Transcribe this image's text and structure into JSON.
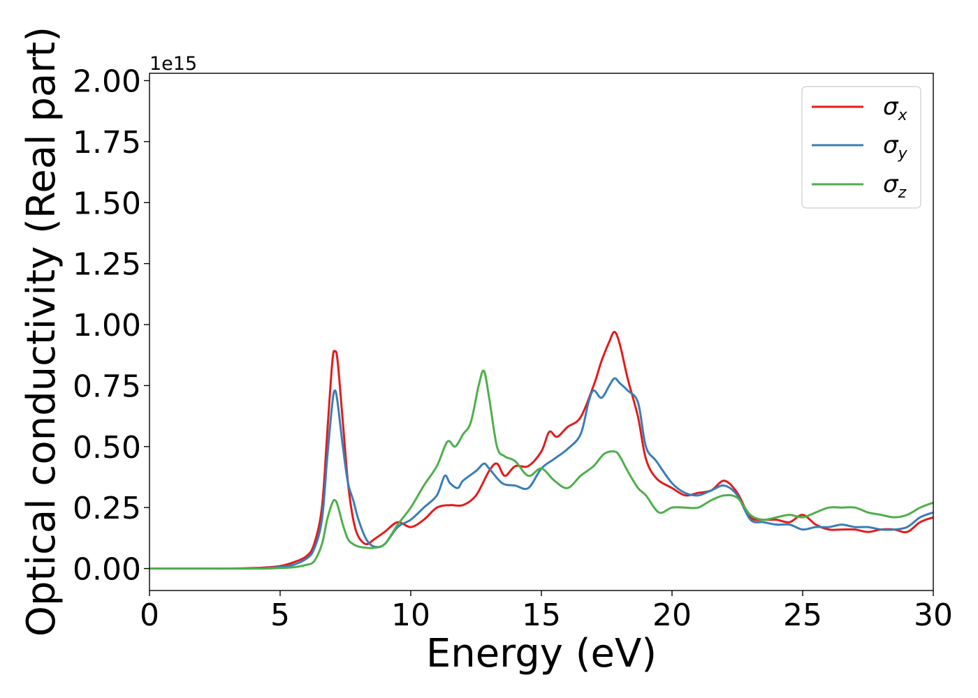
{
  "chart_data": {
    "type": "line",
    "title": "",
    "xlabel": "Energy (eV)",
    "ylabel": "Optical conductivity (Real part)",
    "y_offset_label": "1e15",
    "xlim": [
      0,
      30
    ],
    "ylim": [
      -0.09,
      2.03
    ],
    "x_ticks": [
      0,
      5,
      10,
      15,
      20,
      25,
      30
    ],
    "x_tick_labels": [
      "0",
      "5",
      "10",
      "15",
      "20",
      "25",
      "30"
    ],
    "y_ticks": [
      0.0,
      0.25,
      0.5,
      0.75,
      1.0,
      1.25,
      1.5,
      1.75,
      2.0
    ],
    "y_tick_labels": [
      "0.00",
      "0.25",
      "0.50",
      "0.75",
      "1.00",
      "1.25",
      "1.50",
      "1.75",
      "2.00"
    ],
    "grid": false,
    "legend_position": "top-right",
    "series": [
      {
        "name": "σx",
        "symbol": "σ",
        "subscript": "x",
        "color": "#e41a1c",
        "x": [
          0,
          1,
          2,
          3,
          4,
          4.5,
          5,
          5.5,
          6,
          6.3,
          6.6,
          6.8,
          7.0,
          7.1,
          7.2,
          7.4,
          7.6,
          7.8,
          8.0,
          8.3,
          8.6,
          9.0,
          9.5,
          10.0,
          10.5,
          11.0,
          11.5,
          12.0,
          12.5,
          13.0,
          13.3,
          13.6,
          14.0,
          14.5,
          15.0,
          15.3,
          15.6,
          16.0,
          16.5,
          17.0,
          17.3,
          17.6,
          17.8,
          18.0,
          18.3,
          18.7,
          19.0,
          19.4,
          20.0,
          20.5,
          21.0,
          21.5,
          22.0,
          22.5,
          23.0,
          23.5,
          24.0,
          24.5,
          25.0,
          25.5,
          26.0,
          26.5,
          27.0,
          27.5,
          28.0,
          28.5,
          29.0,
          29.5,
          30.0
        ],
        "y": [
          0,
          0,
          0,
          0,
          0.002,
          0.005,
          0.01,
          0.025,
          0.05,
          0.1,
          0.25,
          0.55,
          0.85,
          0.89,
          0.85,
          0.6,
          0.35,
          0.2,
          0.13,
          0.1,
          0.12,
          0.15,
          0.19,
          0.17,
          0.2,
          0.25,
          0.26,
          0.26,
          0.3,
          0.4,
          0.43,
          0.38,
          0.42,
          0.42,
          0.48,
          0.56,
          0.54,
          0.58,
          0.62,
          0.75,
          0.85,
          0.93,
          0.97,
          0.92,
          0.78,
          0.62,
          0.45,
          0.37,
          0.33,
          0.3,
          0.31,
          0.32,
          0.36,
          0.31,
          0.21,
          0.2,
          0.2,
          0.19,
          0.22,
          0.18,
          0.16,
          0.16,
          0.16,
          0.15,
          0.16,
          0.16,
          0.15,
          0.19,
          0.21
        ]
      },
      {
        "name": "σy",
        "symbol": "σ",
        "subscript": "y",
        "color": "#377eb8",
        "x": [
          0,
          1,
          2,
          3,
          4,
          4.5,
          5,
          5.5,
          6,
          6.3,
          6.6,
          6.8,
          7.0,
          7.1,
          7.2,
          7.4,
          7.6,
          7.8,
          8.0,
          8.3,
          8.6,
          9.0,
          9.5,
          10.0,
          10.5,
          11.0,
          11.3,
          11.5,
          11.8,
          12.0,
          12.5,
          12.8,
          13.0,
          13.5,
          14.0,
          14.5,
          15.0,
          15.5,
          16.0,
          16.5,
          16.8,
          17.0,
          17.3,
          17.6,
          17.8,
          18.0,
          18.3,
          18.7,
          19.0,
          19.4,
          20.0,
          20.5,
          21.0,
          21.5,
          22.0,
          22.5,
          23.0,
          23.5,
          24.0,
          24.5,
          25.0,
          25.5,
          26.0,
          26.5,
          27.0,
          27.5,
          28.0,
          28.5,
          29.0,
          29.5,
          30.0
        ],
        "y": [
          0,
          0,
          0,
          0,
          0,
          0.002,
          0.006,
          0.015,
          0.04,
          0.08,
          0.2,
          0.45,
          0.68,
          0.73,
          0.68,
          0.5,
          0.35,
          0.28,
          0.2,
          0.12,
          0.09,
          0.1,
          0.17,
          0.2,
          0.25,
          0.3,
          0.38,
          0.35,
          0.33,
          0.36,
          0.4,
          0.43,
          0.41,
          0.35,
          0.34,
          0.33,
          0.41,
          0.45,
          0.49,
          0.55,
          0.68,
          0.73,
          0.7,
          0.75,
          0.78,
          0.76,
          0.73,
          0.68,
          0.5,
          0.44,
          0.35,
          0.31,
          0.3,
          0.32,
          0.34,
          0.3,
          0.2,
          0.19,
          0.18,
          0.18,
          0.16,
          0.17,
          0.17,
          0.18,
          0.17,
          0.17,
          0.16,
          0.16,
          0.17,
          0.21,
          0.23
        ]
      },
      {
        "name": "σz",
        "symbol": "σ",
        "subscript": "z",
        "color": "#4daf4a",
        "x": [
          0,
          1,
          2,
          3,
          4,
          4.5,
          5,
          5.5,
          6,
          6.3,
          6.6,
          6.8,
          7.0,
          7.1,
          7.2,
          7.4,
          7.6,
          7.8,
          8.0,
          8.3,
          8.6,
          9.0,
          9.5,
          10.0,
          10.5,
          11.0,
          11.4,
          11.7,
          12.0,
          12.3,
          12.6,
          12.8,
          13.0,
          13.3,
          13.6,
          14.0,
          14.5,
          15.0,
          15.5,
          16.0,
          16.5,
          17.0,
          17.4,
          17.8,
          18.0,
          18.3,
          18.7,
          19.0,
          19.5,
          20.0,
          20.5,
          21.0,
          21.5,
          22.0,
          22.5,
          23.0,
          23.5,
          24.0,
          24.5,
          25.0,
          25.5,
          26.0,
          26.5,
          27.0,
          27.5,
          28.0,
          28.5,
          29.0,
          29.5,
          30.0
        ],
        "y": [
          0,
          0,
          0,
          0,
          0,
          0,
          0.002,
          0.005,
          0.015,
          0.03,
          0.1,
          0.2,
          0.27,
          0.28,
          0.26,
          0.18,
          0.12,
          0.1,
          0.09,
          0.085,
          0.085,
          0.1,
          0.18,
          0.25,
          0.34,
          0.42,
          0.52,
          0.5,
          0.55,
          0.6,
          0.75,
          0.81,
          0.7,
          0.5,
          0.46,
          0.44,
          0.38,
          0.41,
          0.36,
          0.33,
          0.38,
          0.42,
          0.47,
          0.48,
          0.46,
          0.4,
          0.33,
          0.3,
          0.23,
          0.25,
          0.25,
          0.25,
          0.28,
          0.3,
          0.29,
          0.22,
          0.2,
          0.21,
          0.22,
          0.21,
          0.23,
          0.25,
          0.25,
          0.25,
          0.23,
          0.22,
          0.21,
          0.22,
          0.25,
          0.27
        ]
      }
    ]
  }
}
